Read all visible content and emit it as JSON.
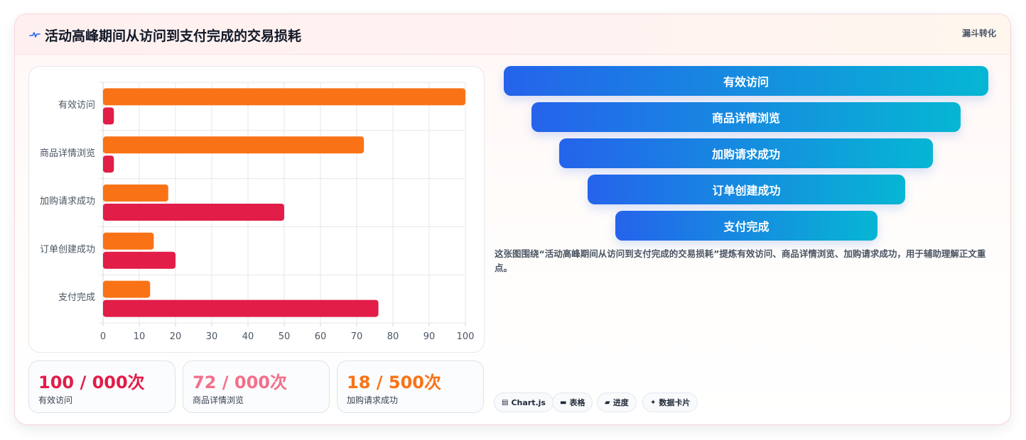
{
  "header": {
    "icon": "pulse-icon",
    "title": "活动高峰期间从访问到支付完成的交易损耗",
    "tag": "漏斗转化"
  },
  "chart_data": {
    "type": "bar",
    "orientation": "horizontal",
    "categories": [
      "有效访问",
      "商品详情浏览",
      "加购请求成功",
      "订单创建成功",
      "支付完成"
    ],
    "series": [
      {
        "values": [
          100,
          72,
          18,
          14,
          13
        ],
        "color": "#f97316"
      },
      {
        "values": [
          3,
          3,
          50,
          20,
          76
        ],
        "color": "#e11d48"
      }
    ],
    "x_ticks": [
      "0",
      "10",
      "20",
      "30",
      "40",
      "50",
      "60",
      "70",
      "80",
      "90",
      "100"
    ],
    "xlim": [
      0,
      100
    ],
    "grid": true
  },
  "stats": [
    {
      "value": "100 / 000次",
      "label": "有效访问",
      "color": "#e11d48"
    },
    {
      "value": "72 / 000次",
      "label": "商品详情浏览",
      "color": "#f2708a"
    },
    {
      "value": "18 / 500次",
      "label": "加购请求成功",
      "color": "#f97316"
    }
  ],
  "funnel": [
    {
      "label": "有效访问"
    },
    {
      "label": "商品详情浏览"
    },
    {
      "label": "加购请求成功"
    },
    {
      "label": "订单创建成功"
    },
    {
      "label": "支付完成"
    }
  ],
  "description": "这张图围绕“活动高峰期间从访问到支付完成的交易损耗”提炼有效访问、商品详情浏览、加购请求成功，用于辅助理解正文重点。",
  "chips": [
    {
      "icon": "chart-icon",
      "glyph": "▤",
      "label": "Chart.js"
    },
    {
      "icon": "table-icon",
      "glyph": "▬",
      "label": "表格"
    },
    {
      "icon": "progress-icon",
      "glyph": "▰",
      "label": "进度"
    },
    {
      "icon": "sparkle-icon",
      "glyph": "✦",
      "label": "数据卡片"
    }
  ]
}
